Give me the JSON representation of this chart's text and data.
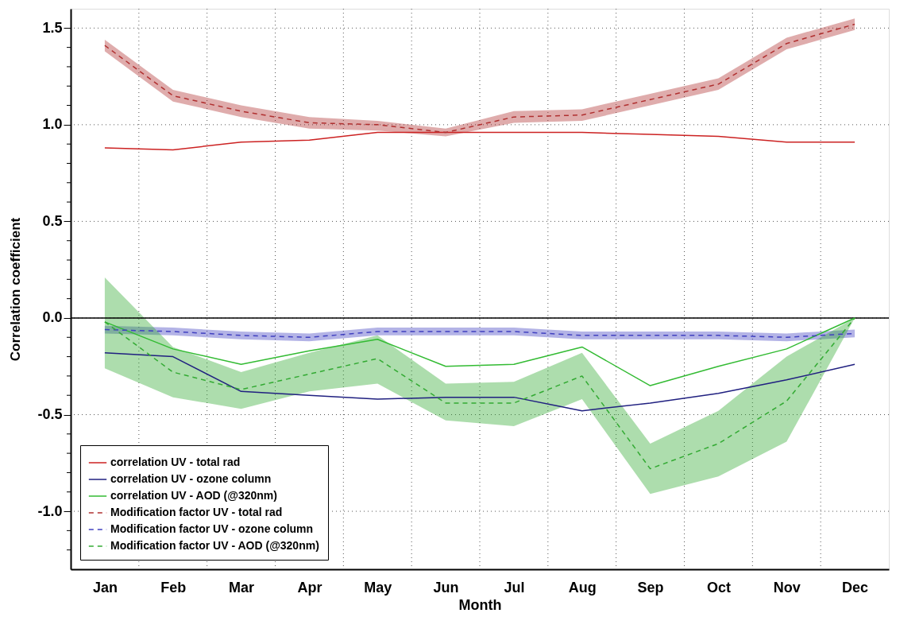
{
  "chart_data": {
    "type": "line",
    "xlabel": "Month",
    "ylabel": "Correlation coefficient",
    "categories": [
      "Jan",
      "Feb",
      "Mar",
      "Apr",
      "May",
      "Jun",
      "Jul",
      "Aug",
      "Sep",
      "Oct",
      "Nov",
      "Dec"
    ],
    "ylim": [
      -1.3,
      1.6
    ],
    "yticks": [
      {
        "value": -1,
        "label": "-1.0"
      },
      -0.5,
      {
        "value": 0,
        "label": "0.0"
      },
      0.5,
      {
        "value": 1,
        "label": "1.0"
      },
      1.5,
      {
        "value": -1.2,
        "label": null
      },
      {
        "value": -1.1,
        "label": null
      },
      {
        "value": -0.9,
        "label": null
      },
      {
        "value": -0.8,
        "label": null
      },
      {
        "value": -0.7,
        "label": null
      },
      {
        "value": -0.6,
        "label": null
      },
      {
        "value": -0.4,
        "label": null
      },
      {
        "value": -0.3,
        "label": null
      },
      {
        "value": -0.2,
        "label": null
      },
      {
        "value": -0.1,
        "label": null
      },
      {
        "value": 0.1,
        "label": null
      },
      {
        "value": 0.2,
        "label": null
      },
      {
        "value": 0.3,
        "label": null
      },
      {
        "value": 0.4,
        "label": null
      },
      {
        "value": 0.6,
        "label": null
      },
      {
        "value": 0.7,
        "label": null
      },
      {
        "value": 0.8,
        "label": null
      },
      {
        "value": 0.9,
        "label": null
      },
      {
        "value": 1.1,
        "label": null
      },
      {
        "value": 1.2,
        "label": null
      },
      {
        "value": 1.3,
        "label": null
      },
      {
        "value": 1.4,
        "label": null
      }
    ],
    "grid": true,
    "legend": "bottom left",
    "line_style": "solid",
    "ref_lines": [
      {
        "axis": "y",
        "value": 0,
        "color": "#000000"
      }
    ],
    "series": [
      {
        "name": "correlation UV - total rad",
        "color": "#cc2222",
        "values": [
          0.88,
          0.87,
          0.91,
          0.92,
          0.96,
          0.96,
          0.96,
          0.96,
          0.95,
          0.94,
          0.91,
          0.91
        ]
      },
      {
        "name": "correlation UV - ozone column",
        "color": "#202080",
        "values": [
          -0.18,
          -0.2,
          -0.38,
          -0.4,
          -0.42,
          -0.41,
          -0.41,
          -0.48,
          -0.44,
          -0.39,
          -0.32,
          -0.24
        ]
      },
      {
        "name": "correlation UV - AOD (@320nm)",
        "color": "#33bb33",
        "values": [
          -0.02,
          -0.16,
          -0.24,
          -0.17,
          -0.11,
          -0.25,
          -0.24,
          -0.15,
          -0.35,
          -0.25,
          -0.16,
          0.0
        ]
      },
      {
        "name": "Modification factor UV - total rad",
        "color": "#b03030",
        "line_style": "dashed",
        "values": [
          1.41,
          1.15,
          1.07,
          1.01,
          1.0,
          0.96,
          1.04,
          1.05,
          1.13,
          1.21,
          1.42,
          1.52
        ],
        "lower": [
          1.38,
          1.12,
          1.04,
          0.98,
          0.97,
          0.94,
          1.01,
          1.02,
          1.1,
          1.18,
          1.39,
          1.49
        ],
        "upper": [
          1.44,
          1.18,
          1.1,
          1.04,
          1.02,
          0.98,
          1.07,
          1.08,
          1.16,
          1.24,
          1.45,
          1.55
        ]
      },
      {
        "name": "Modification factor UV - ozone column",
        "color": "#4040c0",
        "line_style": "dashed",
        "values": [
          -0.06,
          -0.07,
          -0.09,
          -0.1,
          -0.07,
          -0.07,
          -0.07,
          -0.09,
          -0.09,
          -0.09,
          -0.1,
          -0.08
        ],
        "lower": [
          -0.08,
          -0.09,
          -0.11,
          -0.12,
          -0.09,
          -0.09,
          -0.09,
          -0.11,
          -0.11,
          -0.11,
          -0.12,
          -0.1
        ],
        "upper": [
          -0.04,
          -0.05,
          -0.07,
          -0.08,
          -0.05,
          -0.05,
          -0.05,
          -0.07,
          -0.07,
          -0.07,
          -0.08,
          -0.06
        ]
      },
      {
        "name": "Modification factor UV - AOD (@320nm)",
        "color": "#33aa33",
        "line_style": "dashed",
        "values": [
          -0.02,
          -0.28,
          -0.37,
          -0.29,
          -0.21,
          -0.44,
          -0.44,
          -0.3,
          -0.78,
          -0.65,
          -0.43,
          0.0
        ],
        "lower": [
          -0.26,
          -0.41,
          -0.47,
          -0.38,
          -0.34,
          -0.53,
          -0.56,
          -0.42,
          -0.91,
          -0.82,
          -0.64,
          0.0
        ],
        "upper": [
          0.21,
          -0.15,
          -0.28,
          -0.18,
          -0.09,
          -0.34,
          -0.33,
          -0.18,
          -0.65,
          -0.48,
          -0.2,
          0.0
        ]
      }
    ]
  }
}
